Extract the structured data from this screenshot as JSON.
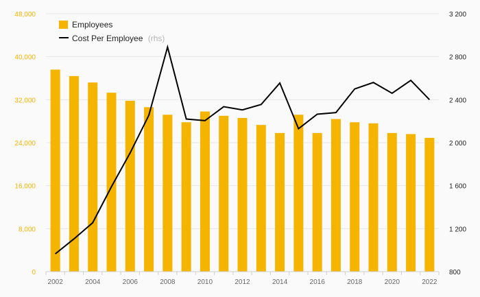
{
  "chart_data": {
    "type": "bar",
    "categories": [
      "2002",
      "2003",
      "2004",
      "2005",
      "2006",
      "2007",
      "2008",
      "2009",
      "2010",
      "2011",
      "2012",
      "2013",
      "2014",
      "2015",
      "2016",
      "2017",
      "2018",
      "2019",
      "2020",
      "2021",
      "2022"
    ],
    "x_tick_labels": [
      "2002",
      "2004",
      "2006",
      "2008",
      "2010",
      "2012",
      "2014",
      "2016",
      "2018",
      "2020",
      "2022"
    ],
    "series": [
      {
        "name": "Employees",
        "type": "bar",
        "axis": "left",
        "values": [
          37600,
          36400,
          35200,
          33300,
          31800,
          30600,
          29200,
          27800,
          29800,
          29000,
          28600,
          27300,
          25800,
          29200,
          25800,
          28400,
          27800,
          27600,
          25800,
          25600,
          24900
        ],
        "color": "#f5b400"
      },
      {
        "name": "Cost Per Employee",
        "type": "line",
        "axis": "right",
        "values": [
          965,
          1105,
          1255,
          1590,
          1905,
          2255,
          2890,
          2220,
          2205,
          2335,
          2305,
          2355,
          2555,
          2130,
          2265,
          2280,
          2500,
          2560,
          2460,
          2580,
          2400
        ],
        "color": "#000000"
      }
    ],
    "legend": {
      "employees": "Employees",
      "cost": "Cost Per Employee",
      "cost_suffix": "(rhs)",
      "placement": "top-left"
    },
    "left_axis": {
      "ylim": [
        0,
        48000
      ],
      "ticks": [
        "0",
        "8,000",
        "16,000",
        "24,000",
        "32,000",
        "40,000",
        "48,000"
      ]
    },
    "right_axis": {
      "ylim": [
        800,
        3200
      ],
      "ticks": [
        "800",
        "1 200",
        "1 600",
        "2 000",
        "2 400",
        "2 800",
        "3 200"
      ]
    },
    "grid": true
  },
  "colors": {
    "background": "#fafafa",
    "bar": "#f5b400",
    "line": "#000000",
    "grid": "#e6e6e6",
    "left_tick": "#f5b400",
    "right_tick": "#222222",
    "x_tick": "#666666"
  }
}
